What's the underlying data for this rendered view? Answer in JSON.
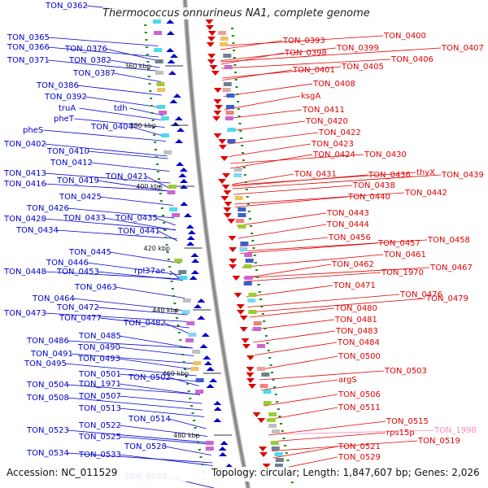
{
  "title": "Thermococcus onnurineus NA1, complete genome",
  "accession": "Accession: NC_011529",
  "topology": "Topology: circular; Length: 1,847,607 bp; Genes: 2,026",
  "colors": {
    "forward": "#0000cc",
    "reverse": "#e00000",
    "rna": "#ff88bb",
    "backbone": "#888888",
    "ticks": "#1a8a1a"
  },
  "scale_labels": [
    "360 kbp",
    "380 kbp",
    "400 kbp",
    "420 kbp",
    "440 kbp",
    "460 kbp",
    "480 kbp"
  ],
  "left_genes": [
    "TON_0362",
    "TON_0365",
    "TON_0366",
    "TON_0371",
    "TON_0376",
    "TON_0382",
    "TON_0387",
    "TON_0386",
    "TON_0392",
    "truA",
    "tdh",
    "pheT",
    "TON_0404",
    "pheS",
    "TON_0402",
    "TON_0410",
    "TON_0412",
    "TON_0413",
    "TON_0419",
    "TON_0421",
    "TON_0416",
    "TON_0425",
    "TON_0426",
    "TON_0428",
    "TON_0433",
    "TON_0435",
    "TON_0434",
    "TON_0441",
    "TON_0445",
    "TON_0446",
    "TON_0448",
    "TON_0453",
    "rpl37ae",
    "TON_0463",
    "TON_0464",
    "TON_0472",
    "TON_0473",
    "TON_0477",
    "TON_0482",
    "TON_0485",
    "TON_0486",
    "TON_0490",
    "TON_0491",
    "TON_0493",
    "TON_0495",
    "TON_0501",
    "TON_0502",
    "TON_0504",
    "TON_1971",
    "TON_0508",
    "TON_0507",
    "TON_0513",
    "TON_0514",
    "TON_0522",
    "TON_0523",
    "TON_0525",
    "TON_0528",
    "TON_0534",
    "TON_0533",
    "TON_0537"
  ],
  "right_genes": [
    "TON_0393",
    "TON_0400",
    "TON_0398",
    "TON_0399",
    "TON_0407",
    "TON_0406",
    "TON_0401",
    "TON_0405",
    "TON_0408",
    "ksgA",
    "TON_0411",
    "TON_0420",
    "TON_0422",
    "TON_0423",
    "TON_0424",
    "TON_0430",
    "TON_0431",
    "TON_0436",
    "thyX",
    "TON_0439",
    "TON_0438",
    "TON_0440",
    "TON_0442",
    "TON_0443",
    "TON_0444",
    "TON_0456",
    "TON_0457",
    "TON_0458",
    "TON_0461",
    "TON_0462",
    "TON_1970",
    "TON_0467",
    "TON_0471",
    "TON_0476",
    "TON_0479",
    "TON_0480",
    "TON_0481",
    "TON_0483",
    "TON_0484",
    "TON_0500",
    "TON_0503",
    "argS",
    "TON_0506",
    "TON_0511",
    "TON_0515",
    "rps15p",
    "TON_0519",
    "TON_0521",
    "TON_0529"
  ],
  "rna_genes": [
    "TON_1998"
  ]
}
